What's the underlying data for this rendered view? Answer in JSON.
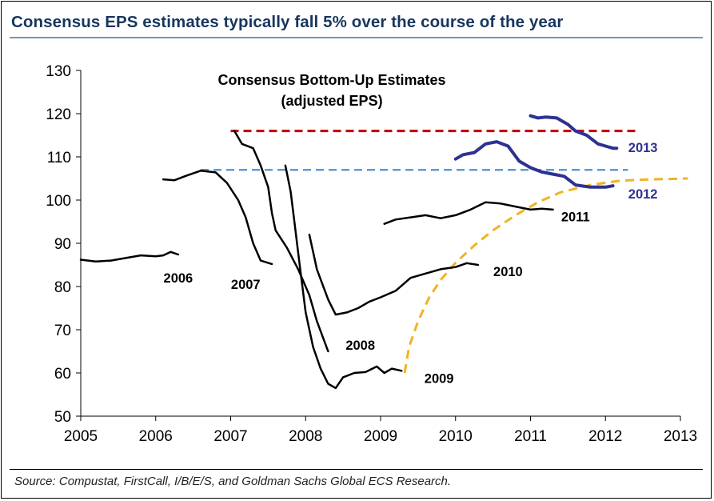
{
  "title": "Consensus EPS estimates typically fall 5% over the course of the year",
  "source": "Source: Compustat, FirstCall, I/B/E/S, and Goldman Sachs Global ECS Research.",
  "colors": {
    "title": "#17365d",
    "series": "#000000",
    "highlight": "#2e3192",
    "red_dash": "#c00000",
    "blue_dash": "#5b9bd5",
    "gold_dash": "#f0b323"
  },
  "chart_data": {
    "type": "line",
    "annotation": [
      "Consensus  Bottom-Up  Estimates",
      "(adjusted EPS)"
    ],
    "xlim": [
      2005,
      2013
    ],
    "ylim": [
      50,
      130
    ],
    "x_ticks": [
      "2005",
      "2006",
      "2007",
      "2008",
      "2009",
      "2010",
      "2011",
      "2012",
      "2013"
    ],
    "y_ticks": [
      "50",
      "60",
      "70",
      "80",
      "90",
      "100",
      "110",
      "120",
      "130"
    ],
    "grid": false,
    "series": [
      {
        "name": "2006",
        "color": "#000000",
        "points": [
          [
            2005.0,
            86.2
          ],
          [
            2005.2,
            85.8
          ],
          [
            2005.4,
            86.0
          ],
          [
            2005.6,
            86.6
          ],
          [
            2005.8,
            87.2
          ],
          [
            2006.0,
            87.0
          ],
          [
            2006.1,
            87.2
          ],
          [
            2006.2,
            88.0
          ],
          [
            2006.3,
            87.4
          ]
        ]
      },
      {
        "name": "2007",
        "color": "#000000",
        "points": [
          [
            2006.1,
            104.8
          ],
          [
            2006.25,
            104.6
          ],
          [
            2006.4,
            105.6
          ],
          [
            2006.6,
            106.8
          ],
          [
            2006.8,
            106.4
          ],
          [
            2006.95,
            104.0
          ],
          [
            2007.1,
            100.0
          ],
          [
            2007.2,
            96.0
          ],
          [
            2007.3,
            90.0
          ],
          [
            2007.4,
            86.0
          ],
          [
            2007.55,
            85.2
          ]
        ]
      },
      {
        "name": "2008",
        "color": "#000000",
        "points": [
          [
            2007.05,
            116.0
          ],
          [
            2007.15,
            113.0
          ],
          [
            2007.3,
            112.0
          ],
          [
            2007.4,
            108.0
          ],
          [
            2007.5,
            103.0
          ],
          [
            2007.55,
            97.0
          ],
          [
            2007.6,
            93.0
          ],
          [
            2007.75,
            89.0
          ],
          [
            2007.9,
            84.0
          ],
          [
            2008.05,
            78.0
          ],
          [
            2008.15,
            72.0
          ],
          [
            2008.3,
            65.0
          ]
        ]
      },
      {
        "name": "2009",
        "color": "#000000",
        "points": [
          [
            2007.73,
            108.0
          ],
          [
            2007.8,
            102.0
          ],
          [
            2007.85,
            95.0
          ],
          [
            2007.92,
            85.0
          ],
          [
            2008.0,
            74.0
          ],
          [
            2008.1,
            66.0
          ],
          [
            2008.2,
            61.0
          ],
          [
            2008.3,
            57.5
          ],
          [
            2008.4,
            56.5
          ],
          [
            2008.5,
            59.0
          ],
          [
            2008.65,
            60.0
          ],
          [
            2008.8,
            60.2
          ],
          [
            2008.95,
            61.5
          ],
          [
            2009.05,
            60.0
          ],
          [
            2009.15,
            61.0
          ],
          [
            2009.28,
            60.5
          ]
        ]
      },
      {
        "name": "2010",
        "color": "#000000",
        "points": [
          [
            2008.05,
            92.0
          ],
          [
            2008.15,
            84.0
          ],
          [
            2008.3,
            77.0
          ],
          [
            2008.4,
            73.5
          ],
          [
            2008.55,
            74.0
          ],
          [
            2008.7,
            75.0
          ],
          [
            2008.85,
            76.5
          ],
          [
            2009.0,
            77.5
          ],
          [
            2009.2,
            79.0
          ],
          [
            2009.4,
            82.0
          ],
          [
            2009.6,
            83.0
          ],
          [
            2009.8,
            84.0
          ],
          [
            2010.0,
            84.5
          ],
          [
            2010.15,
            85.4
          ],
          [
            2010.3,
            85.0
          ]
        ]
      },
      {
        "name": "2011",
        "color": "#000000",
        "points": [
          [
            2009.05,
            94.5
          ],
          [
            2009.2,
            95.5
          ],
          [
            2009.4,
            96.0
          ],
          [
            2009.6,
            96.5
          ],
          [
            2009.8,
            95.8
          ],
          [
            2010.0,
            96.5
          ],
          [
            2010.2,
            97.8
          ],
          [
            2010.4,
            99.5
          ],
          [
            2010.6,
            99.2
          ],
          [
            2010.8,
            98.5
          ],
          [
            2011.0,
            97.8
          ],
          [
            2011.15,
            98.0
          ],
          [
            2011.3,
            97.8
          ]
        ]
      },
      {
        "name": "2012",
        "color": "#2e3192",
        "points": [
          [
            2010.0,
            109.5
          ],
          [
            2010.1,
            110.5
          ],
          [
            2010.25,
            111.0
          ],
          [
            2010.4,
            113.0
          ],
          [
            2010.55,
            113.5
          ],
          [
            2010.7,
            112.5
          ],
          [
            2010.85,
            109.0
          ],
          [
            2011.0,
            107.5
          ],
          [
            2011.15,
            106.5
          ],
          [
            2011.3,
            106.0
          ],
          [
            2011.45,
            105.5
          ],
          [
            2011.6,
            103.5
          ],
          [
            2011.8,
            103.0
          ],
          [
            2012.0,
            103.0
          ],
          [
            2012.1,
            103.3
          ]
        ]
      },
      {
        "name": "2013",
        "color": "#2e3192",
        "points": [
          [
            2011.0,
            119.5
          ],
          [
            2011.1,
            119.0
          ],
          [
            2011.2,
            119.2
          ],
          [
            2011.35,
            119.0
          ],
          [
            2011.5,
            117.5
          ],
          [
            2011.6,
            116.0
          ],
          [
            2011.75,
            115.0
          ],
          [
            2011.9,
            113.0
          ],
          [
            2012.0,
            112.5
          ],
          [
            2012.1,
            112.0
          ],
          [
            2012.15,
            112.0
          ]
        ]
      }
    ],
    "reference_lines": [
      {
        "color": "#c00000",
        "x": [
          2007.0,
          2012.4
        ],
        "y": 116.0
      },
      {
        "color": "#5b9bd5",
        "x": [
          2006.6,
          2012.3
        ],
        "y": 107.0
      }
    ],
    "trend_curve": {
      "color": "#f0b323",
      "points": [
        [
          2009.32,
          60.0
        ],
        [
          2009.38,
          66.0
        ],
        [
          2009.5,
          72.0
        ],
        [
          2009.65,
          77.5
        ],
        [
          2009.8,
          81.5
        ],
        [
          2010.0,
          85.5
        ],
        [
          2010.25,
          89.5
        ],
        [
          2010.5,
          93.0
        ],
        [
          2010.8,
          96.5
        ],
        [
          2011.1,
          99.5
        ],
        [
          2011.4,
          101.8
        ],
        [
          2011.8,
          103.5
        ],
        [
          2012.2,
          104.5
        ],
        [
          2012.6,
          104.8
        ],
        [
          2013.1,
          105.0
        ]
      ]
    },
    "series_label_positions": {
      "2006": [
        2006.3,
        82.0
      ],
      "2007": [
        2007.2,
        80.6
      ],
      "2008": [
        2008.73,
        66.5
      ],
      "2009": [
        2009.78,
        58.8
      ],
      "2010": [
        2010.7,
        83.5
      ],
      "2011": [
        2011.6,
        96.2
      ],
      "2012": [
        2012.5,
        101.5
      ],
      "2013": [
        2012.5,
        112.2
      ]
    },
    "annotation_position": [
      2008.35,
      127.0
    ]
  }
}
